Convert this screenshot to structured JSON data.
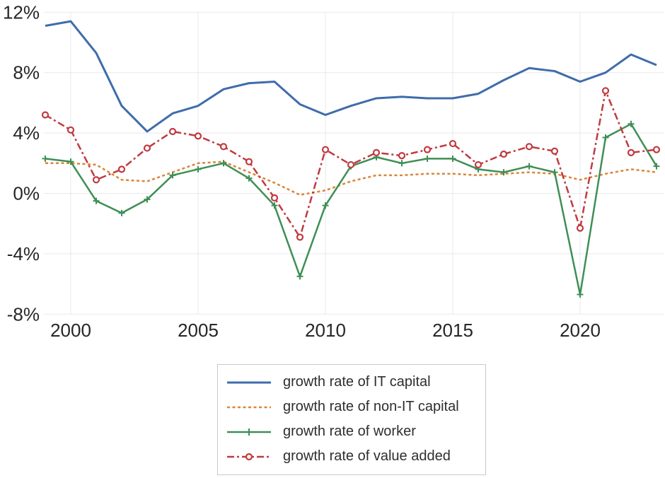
{
  "chart_data": {
    "type": "line",
    "x": [
      1999,
      2000,
      2001,
      2002,
      2003,
      2004,
      2005,
      2006,
      2007,
      2008,
      2009,
      2010,
      2011,
      2012,
      2013,
      2014,
      2015,
      2016,
      2017,
      2018,
      2019,
      2020,
      2021,
      2022,
      2023
    ],
    "series": [
      {
        "name": "growth rate of IT capital",
        "color": "#3f6cab",
        "style": "solid",
        "marker": "none",
        "width": 3,
        "values": [
          11.1,
          11.4,
          9.3,
          5.8,
          4.1,
          5.3,
          5.8,
          6.9,
          7.3,
          7.4,
          5.9,
          5.2,
          5.8,
          6.3,
          6.4,
          6.3,
          6.3,
          6.6,
          7.5,
          8.3,
          8.1,
          7.4,
          8.0,
          9.2,
          8.5
        ]
      },
      {
        "name": "growth rate of non-IT capital",
        "color": "#d9863a",
        "style": "dotted",
        "marker": "none",
        "width": 2.5,
        "values": [
          2.0,
          2.0,
          1.9,
          0.9,
          0.8,
          1.4,
          2.0,
          2.1,
          1.4,
          0.7,
          -0.1,
          0.2,
          0.8,
          1.2,
          1.2,
          1.3,
          1.3,
          1.2,
          1.3,
          1.4,
          1.3,
          0.9,
          1.3,
          1.6,
          1.4
        ]
      },
      {
        "name": "growth rate of worker",
        "color": "#3e8f55",
        "style": "solid",
        "marker": "plus",
        "width": 2.5,
        "values": [
          2.3,
          2.1,
          -0.5,
          -1.3,
          -0.4,
          1.2,
          1.6,
          2.0,
          1.0,
          -0.8,
          -5.5,
          -0.8,
          1.8,
          2.4,
          2.0,
          2.3,
          2.3,
          1.6,
          1.4,
          1.8,
          1.4,
          -6.7,
          3.7,
          4.6,
          1.8
        ]
      },
      {
        "name": "growth rate of value added",
        "color": "#c03a40",
        "style": "dashdot",
        "marker": "circle",
        "width": 2.5,
        "values": [
          5.2,
          4.2,
          0.9,
          1.6,
          3.0,
          4.1,
          3.8,
          3.1,
          2.1,
          -0.3,
          -2.9,
          2.9,
          1.9,
          2.7,
          2.5,
          2.9,
          3.3,
          1.9,
          2.6,
          3.1,
          2.8,
          -2.3,
          6.8,
          2.7,
          2.9
        ]
      }
    ],
    "yticks": [
      {
        "value": 12,
        "label": "12%"
      },
      {
        "value": 8,
        "label": "8%"
      },
      {
        "value": 4,
        "label": "4%"
      },
      {
        "value": 0,
        "label": "0%"
      },
      {
        "value": -4,
        "label": "-4%"
      },
      {
        "value": -8,
        "label": "-8%"
      }
    ],
    "xticks": [
      {
        "value": 2000,
        "label": "2000"
      },
      {
        "value": 2005,
        "label": "2005"
      },
      {
        "value": 2010,
        "label": "2010"
      },
      {
        "value": 2015,
        "label": "2015"
      },
      {
        "value": 2020,
        "label": "2020"
      }
    ],
    "xlim": [
      1999,
      2023
    ],
    "ylim": [
      -8,
      12
    ],
    "grid": true,
    "legend_position": "bottom-center",
    "gridline_color": "#e9e9e9",
    "tick_label_color": "#262626",
    "title": "",
    "xlabel": "",
    "ylabel": ""
  }
}
